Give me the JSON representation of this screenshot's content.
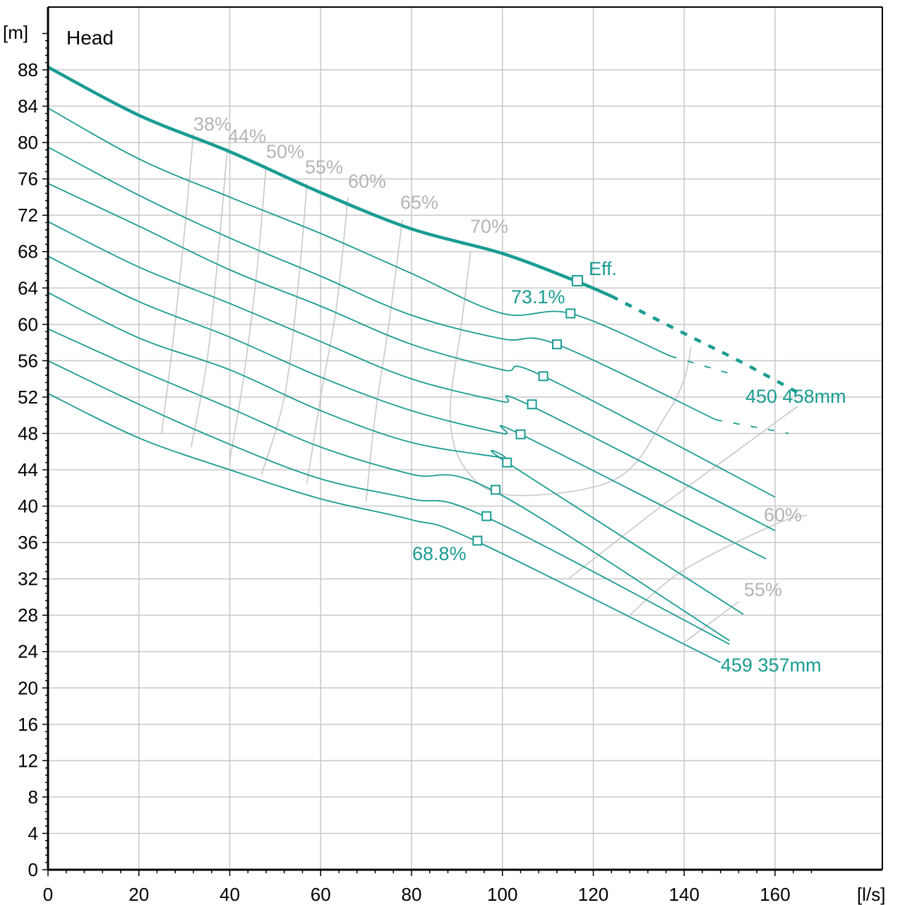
{
  "chart_data": {
    "type": "line",
    "title": "Head",
    "ylabel": "[m]",
    "xlabel": "[l/s]",
    "xlim": [
      0,
      168
    ],
    "ylim": [
      0,
      92
    ],
    "xticks": [
      0,
      20,
      40,
      60,
      80,
      100,
      120,
      140,
      160
    ],
    "yticks": [
      0,
      4,
      8,
      12,
      16,
      20,
      24,
      28,
      32,
      36,
      40,
      44,
      48,
      52,
      56,
      60,
      64,
      68,
      72,
      76,
      80,
      84,
      88
    ],
    "grid": true,
    "colors": {
      "curve": "#1a9c92",
      "efficiency": "#c8c8c8",
      "grid": "#c8c8c8",
      "axis": "#000000"
    },
    "series": [
      {
        "name": "450 458mm",
        "highlight": true,
        "x": [
          0,
          20,
          40,
          60,
          80,
          100,
          116,
          124
        ],
        "y": [
          88.3,
          83,
          79,
          74.5,
          70.5,
          67.8,
          64.8,
          63.1
        ],
        "ext_x": [
          124,
          140,
          152,
          165
        ],
        "ext_y": [
          63.1,
          59,
          56,
          52.5
        ]
      },
      {
        "x": [
          0,
          20,
          40,
          60,
          80,
          100,
          115,
          137
        ],
        "y": [
          83.8,
          78.2,
          74,
          70,
          65.6,
          61.2,
          61.2,
          56.5
        ],
        "ext_x": [
          137,
          150
        ],
        "ext_y": [
          56.5,
          54.6
        ]
      },
      {
        "x": [
          0,
          20,
          40,
          60,
          80,
          100,
          112,
          147
        ],
        "y": [
          79.5,
          74.2,
          69.5,
          65.3,
          61,
          58.4,
          57.8,
          49.5
        ],
        "ext_x": [
          147,
          163
        ],
        "ext_y": [
          49.5,
          48
        ]
      },
      {
        "x": [
          0,
          20,
          40,
          60,
          80,
          100,
          109,
          160
        ],
        "y": [
          75.5,
          70.8,
          66,
          62,
          57.8,
          55,
          54.3,
          41
        ],
        "ext_x": [],
        "ext_y": []
      },
      {
        "x": [
          0,
          20,
          40,
          60,
          80,
          100,
          106,
          160
        ],
        "y": [
          71.3,
          66.3,
          62.3,
          58.1,
          54,
          51.5,
          51.1,
          37.3
        ],
        "ext_x": [],
        "ext_y": []
      },
      {
        "x": [
          0,
          20,
          40,
          60,
          80,
          100,
          104,
          158
        ],
        "y": [
          67.5,
          62.5,
          58.6,
          54.2,
          50.5,
          48,
          47.9,
          34.2
        ],
        "ext_x": [],
        "ext_y": []
      },
      {
        "x": [
          0,
          20,
          40,
          60,
          80,
          100,
          101,
          153
        ],
        "y": [
          63.5,
          58.5,
          55,
          50.5,
          47,
          45.3,
          44.8,
          28.1
        ],
        "ext_x": [],
        "ext_y": []
      },
      {
        "x": [
          0,
          20,
          40,
          60,
          80,
          98,
          150
        ],
        "y": [
          59.5,
          55,
          50.8,
          46.5,
          43.5,
          41.7,
          25.2
        ],
        "ext_x": [],
        "ext_y": []
      },
      {
        "x": [
          0,
          20,
          40,
          60,
          80,
          96,
          150
        ],
        "y": [
          56,
          51.2,
          46.8,
          43,
          40.8,
          38.9,
          24.8
        ],
        "ext_x": [],
        "ext_y": []
      },
      {
        "name": "459 357mm",
        "x": [
          0,
          20,
          40,
          60,
          80,
          94,
          148
        ],
        "y": [
          52.4,
          47.5,
          44,
          40.8,
          38.5,
          36.2,
          22.8
        ],
        "ext_x": [],
        "ext_y": []
      }
    ],
    "eff_markers": [
      {
        "x": 116.5,
        "y": 64.8
      },
      {
        "x": 115,
        "y": 61.2
      },
      {
        "x": 112,
        "y": 57.8
      },
      {
        "x": 109,
        "y": 54.3
      },
      {
        "x": 106.5,
        "y": 51.2
      },
      {
        "x": 104,
        "y": 47.9
      },
      {
        "x": 101,
        "y": 44.8
      },
      {
        "x": 98.5,
        "y": 41.8
      },
      {
        "x": 96.5,
        "y": 38.9
      },
      {
        "x": 94.5,
        "y": 36.2
      }
    ],
    "iso_eff_lines": [
      {
        "label": "38%",
        "x": [
          32,
          30,
          27.5,
          25
        ],
        "y": [
          81,
          70,
          58,
          48
        ]
      },
      {
        "label": "44%",
        "x": [
          39.5,
          37.5,
          35,
          31.5
        ],
        "y": [
          79.5,
          68,
          56,
          46.5
        ]
      },
      {
        "label": "50%",
        "x": [
          48,
          46,
          43,
          40
        ],
        "y": [
          77.5,
          66,
          54,
          45
        ]
      },
      {
        "label": "55%",
        "x": [
          57,
          55,
          52,
          47
        ],
        "y": [
          75.5,
          64,
          52,
          43.5
        ]
      },
      {
        "label": "60%",
        "x": [
          66,
          63.5,
          60,
          57
        ],
        "y": [
          74,
          62,
          52,
          42.5
        ]
      },
      {
        "label": "65%",
        "x": [
          78,
          75,
          72,
          70
        ],
        "y": [
          71.5,
          60,
          50,
          40.5
        ]
      },
      {
        "label": "70%",
        "x": [
          93,
          91,
          88.5,
          92,
          102,
          125,
          136,
          140,
          141.5
        ],
        "y": [
          68,
          60,
          50,
          44,
          41.2,
          43,
          50,
          54,
          57.5
        ]
      },
      {
        "label": "60%",
        "x": [
          114.5,
          135,
          150,
          165
        ],
        "y": [
          32,
          40,
          45.5,
          51
        ]
      },
      {
        "label": "55%",
        "x": [
          128,
          140,
          160,
          167
        ],
        "y": [
          28,
          33,
          38,
          39
        ]
      },
      {
        "label": "",
        "x": [
          140,
          152
        ],
        "y": [
          25,
          29.5
        ]
      }
    ],
    "labels": {
      "eff": "Eff.",
      "eff_max": "73.1%",
      "eff_min": "68.8%",
      "top_curve": "450 458mm",
      "bottom_curve": "459 357mm",
      "iso_low_left": [
        "38%",
        "44%",
        "50%",
        "55%",
        "60%",
        "65%",
        "70%"
      ],
      "iso_right": [
        "60%",
        "55%"
      ]
    }
  }
}
